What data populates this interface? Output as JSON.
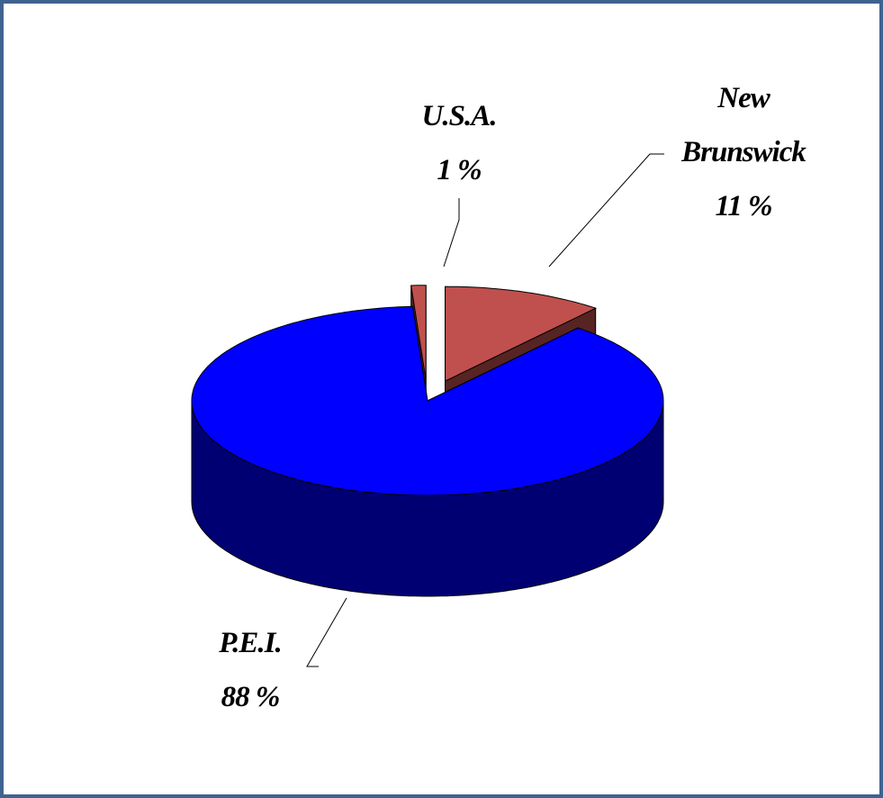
{
  "chart_data": {
    "type": "pie3d",
    "categories": [
      "New Brunswick",
      "P.E.I.",
      "U.S.A."
    ],
    "values": [
      11,
      88,
      1
    ],
    "value_labels": [
      "11 %",
      "88 %",
      "1 %"
    ],
    "colors": [
      "#c0504d",
      "#0000ff",
      "#c0504d"
    ],
    "explode": [
      true,
      false,
      true
    ]
  }
}
